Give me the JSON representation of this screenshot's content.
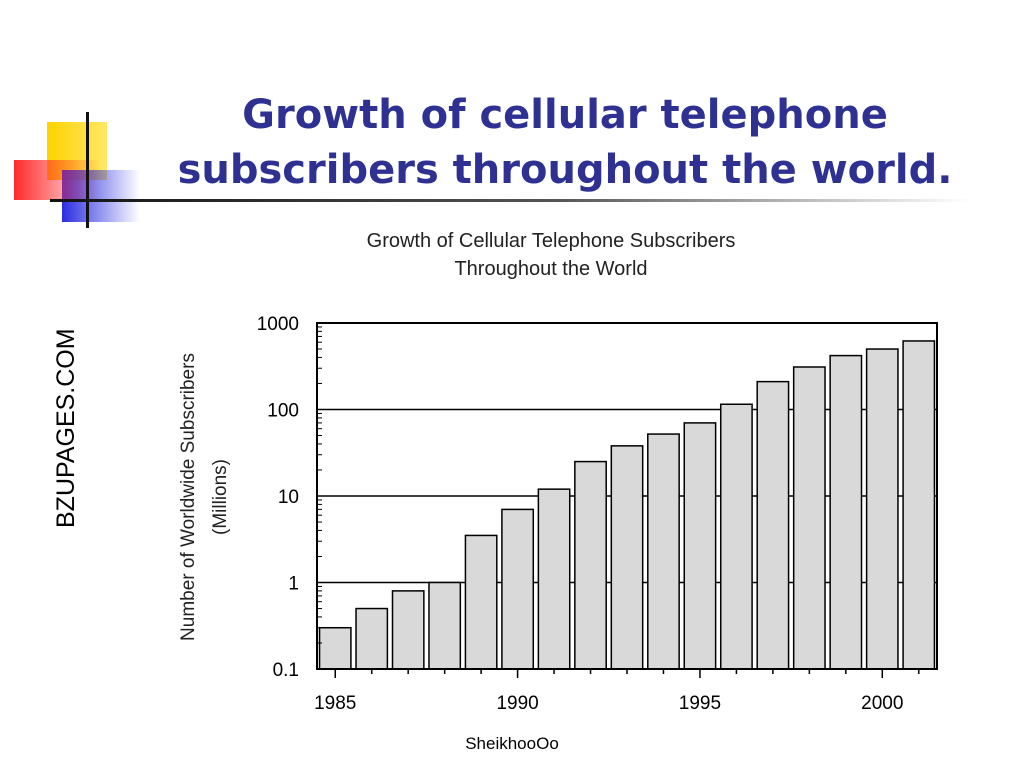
{
  "slide": {
    "title_line1": "Growth of cellular telephone",
    "title_line2": "subscribers throughout the world.",
    "side_text": "BZUPAGES.COM",
    "footer": "SheikhooOo"
  },
  "colors": {
    "title": "#2e3192",
    "bar_fill": "#d9d9d9",
    "logo_yellow": "#ffd200",
    "logo_red": "#ff3030",
    "logo_blue": "#2b2ee0"
  },
  "chart_data": {
    "type": "bar",
    "title_line1": "Growth of Cellular Telephone Subscribers",
    "title_line2": "Throughout the World",
    "ylabel_line1": "Number of Worldwide Subscribers",
    "ylabel_line2": "(Millions)",
    "xlabel": "",
    "y_scale": "log",
    "ylim": [
      0.1,
      1000
    ],
    "y_ticks": [
      0.1,
      1,
      10,
      100,
      1000
    ],
    "y_tick_labels": [
      "0.1",
      "1",
      "10",
      "100",
      "1000"
    ],
    "x_ticks": [
      1985,
      1990,
      1995,
      2000
    ],
    "x_tick_labels": [
      "1985",
      "1990",
      "1995",
      "2000"
    ],
    "gridlines": "major-y",
    "categories": [
      1985,
      1986,
      1987,
      1988,
      1989,
      1990,
      1991,
      1992,
      1993,
      1994,
      1995,
      1996,
      1997,
      1998,
      1999,
      2000,
      2001
    ],
    "values": [
      0.3,
      0.5,
      0.8,
      1.0,
      3.5,
      7,
      12,
      25,
      38,
      52,
      70,
      115,
      210,
      310,
      420,
      500,
      620
    ]
  }
}
